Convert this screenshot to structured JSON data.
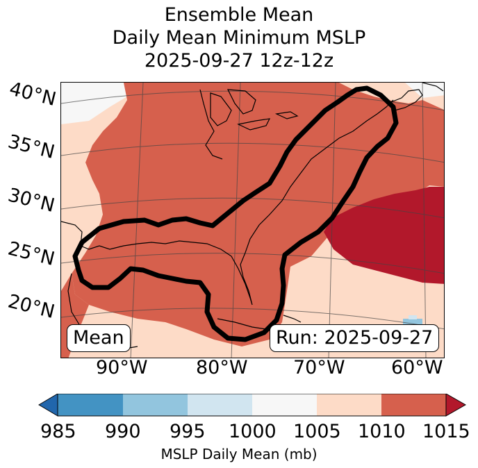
{
  "title": {
    "line1": "Ensemble Mean",
    "line2": "Daily Mean Minimum MSLP",
    "line3": "2025-09-27 12z-12z"
  },
  "map": {
    "lat_labels": [
      "40°N",
      "35°N",
      "30°N",
      "25°N",
      "20°N"
    ],
    "lon_labels": [
      "90°W",
      "80°W",
      "70°W",
      "60°W"
    ],
    "mean_box": "Mean",
    "run_box": "Run: 2025-09-27"
  },
  "colorbar": {
    "ticks": [
      "985",
      "990",
      "995",
      "1000",
      "1005",
      "1010",
      "1015"
    ],
    "title": "MSLP Daily Mean (mb)",
    "colors": {
      "under": "#2166ac",
      "c985": "#4393c3",
      "c990": "#92c5de",
      "c995": "#d1e5f0",
      "c1000": "#f7f7f7",
      "c1005": "#fddbc7",
      "c1010": "#d6604d",
      "over": "#b2182b"
    }
  }
}
